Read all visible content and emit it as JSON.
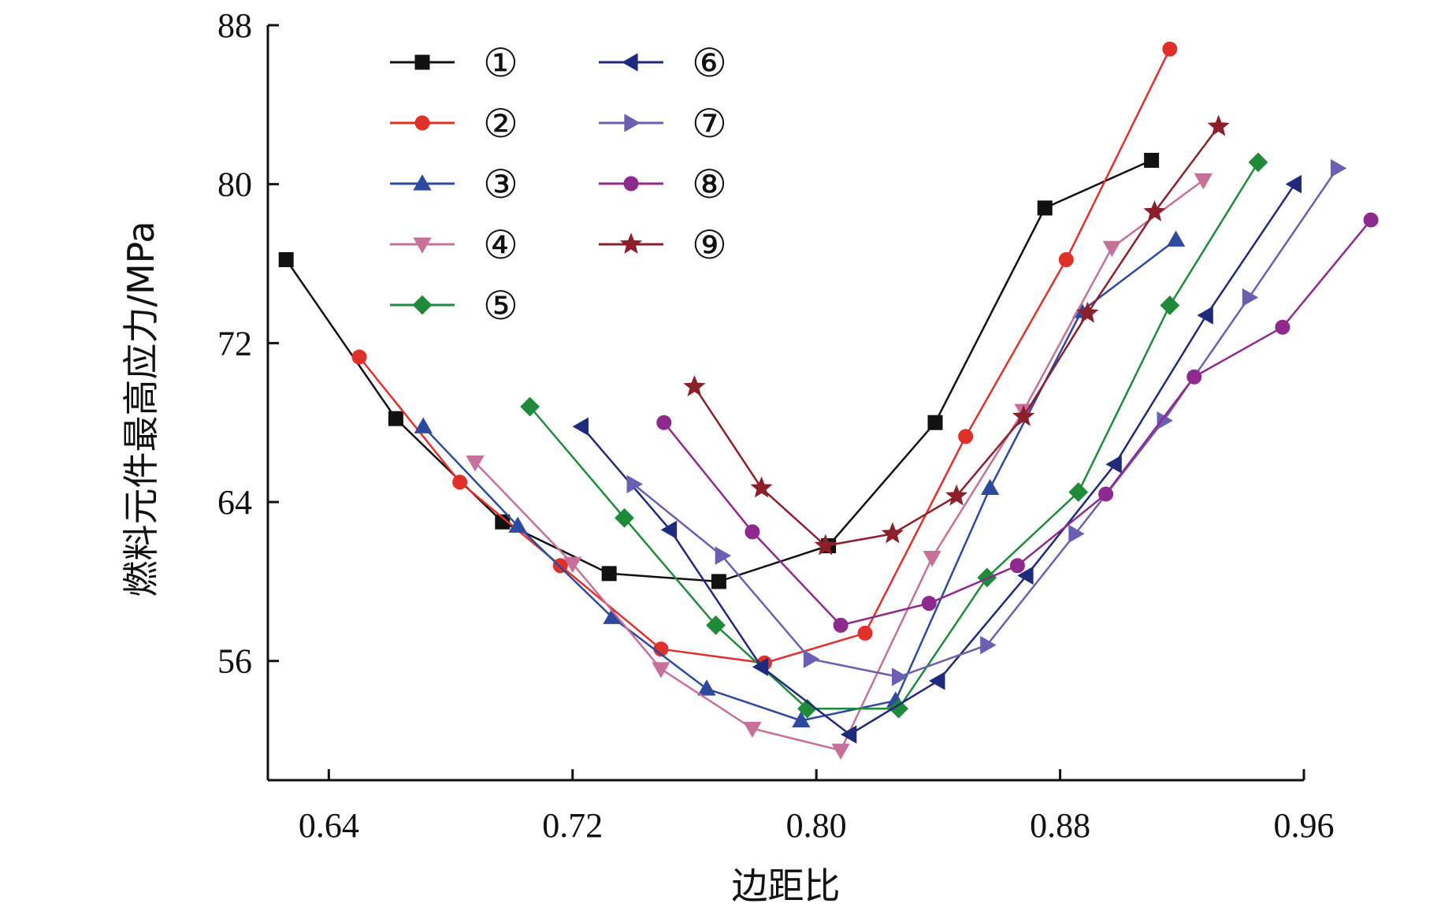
{
  "chart_data": {
    "type": "line",
    "title": "",
    "xlabel": "边距比",
    "ylabel": "燃料元件最高应力/MPa",
    "xlim": [
      0.62,
      0.96
    ],
    "ylim": [
      50,
      88
    ],
    "xticks": [
      0.64,
      0.72,
      0.8,
      0.88,
      0.96
    ],
    "xtick_labels": [
      "0.64",
      "0.72",
      "0.80",
      "0.88",
      "0.96"
    ],
    "yticks": [
      56,
      64,
      72,
      80,
      88
    ],
    "ytick_labels": [
      "56",
      "64",
      "72",
      "80",
      "88"
    ],
    "grid": false,
    "legend_position": "top-left",
    "series": [
      {
        "name": "①",
        "color": "#111111",
        "marker": "square",
        "x": [
          0.626,
          0.662,
          0.697,
          0.732,
          0.768,
          0.804,
          0.839,
          0.875,
          0.91
        ],
        "y": [
          76.2,
          68.2,
          63.0,
          60.4,
          60.0,
          61.8,
          68.0,
          78.8,
          81.2
        ]
      },
      {
        "name": "②",
        "color": "#e0302a",
        "marker": "circle",
        "x": [
          0.65,
          0.683,
          0.716,
          0.749,
          0.783,
          0.816,
          0.849,
          0.882,
          0.916
        ],
        "y": [
          71.3,
          65.0,
          60.8,
          56.6,
          55.9,
          57.4,
          67.3,
          76.2,
          86.8
        ]
      },
      {
        "name": "③",
        "color": "#2e4a9e",
        "marker": "triangle-up",
        "x": [
          0.671,
          0.702,
          0.733,
          0.764,
          0.795,
          0.826,
          0.857,
          0.887,
          0.918
        ],
        "y": [
          67.8,
          62.8,
          58.2,
          54.6,
          53.0,
          54.0,
          64.7,
          73.6,
          77.2
        ]
      },
      {
        "name": "④",
        "color": "#c6709a",
        "marker": "triangle-down",
        "x": [
          0.688,
          0.72,
          0.749,
          0.779,
          0.808,
          0.838,
          0.868,
          0.897,
          0.927
        ],
        "y": [
          66.0,
          60.9,
          55.6,
          52.6,
          51.5,
          61.2,
          68.6,
          76.8,
          80.2
        ]
      },
      {
        "name": "⑤",
        "color": "#1f8a3a",
        "marker": "diamond",
        "x": [
          0.706,
          0.737,
          0.767,
          0.797,
          0.827,
          0.856,
          0.886,
          0.916,
          0.945
        ],
        "y": [
          68.8,
          63.2,
          57.8,
          53.6,
          53.6,
          60.2,
          64.5,
          73.9,
          81.1
        ]
      },
      {
        "name": "⑥",
        "color": "#1f2a7a",
        "marker": "triangle-left",
        "x": [
          0.723,
          0.752,
          0.782,
          0.811,
          0.84,
          0.869,
          0.898,
          0.928,
          0.957
        ],
        "y": [
          67.8,
          62.6,
          55.7,
          52.3,
          55.0,
          60.3,
          65.9,
          73.4,
          80.0
        ]
      },
      {
        "name": "⑦",
        "color": "#6a5fb0",
        "marker": "triangle-right",
        "x": [
          0.74,
          0.769,
          0.798,
          0.827,
          0.856,
          0.885,
          0.914,
          0.942,
          0.971
        ],
        "y": [
          64.9,
          61.3,
          56.1,
          55.2,
          56.8,
          62.4,
          68.1,
          74.3,
          80.8
        ]
      },
      {
        "name": "⑧",
        "color": "#8e2a8e",
        "marker": "circle",
        "x": [
          0.75,
          0.779,
          0.808,
          0.837,
          0.866,
          0.895,
          0.924,
          0.953,
          0.982
        ],
        "y": [
          68.0,
          62.5,
          57.8,
          58.9,
          60.8,
          64.4,
          70.3,
          72.8,
          78.2
        ]
      },
      {
        "name": "⑨",
        "color": "#8b1f2a",
        "marker": "star",
        "x": [
          0.76,
          0.782,
          0.803,
          0.825,
          0.846,
          0.868,
          0.889,
          0.911,
          0.932
        ],
        "y": [
          69.8,
          64.7,
          61.8,
          62.4,
          64.3,
          68.3,
          73.5,
          78.6,
          82.9
        ]
      }
    ]
  }
}
